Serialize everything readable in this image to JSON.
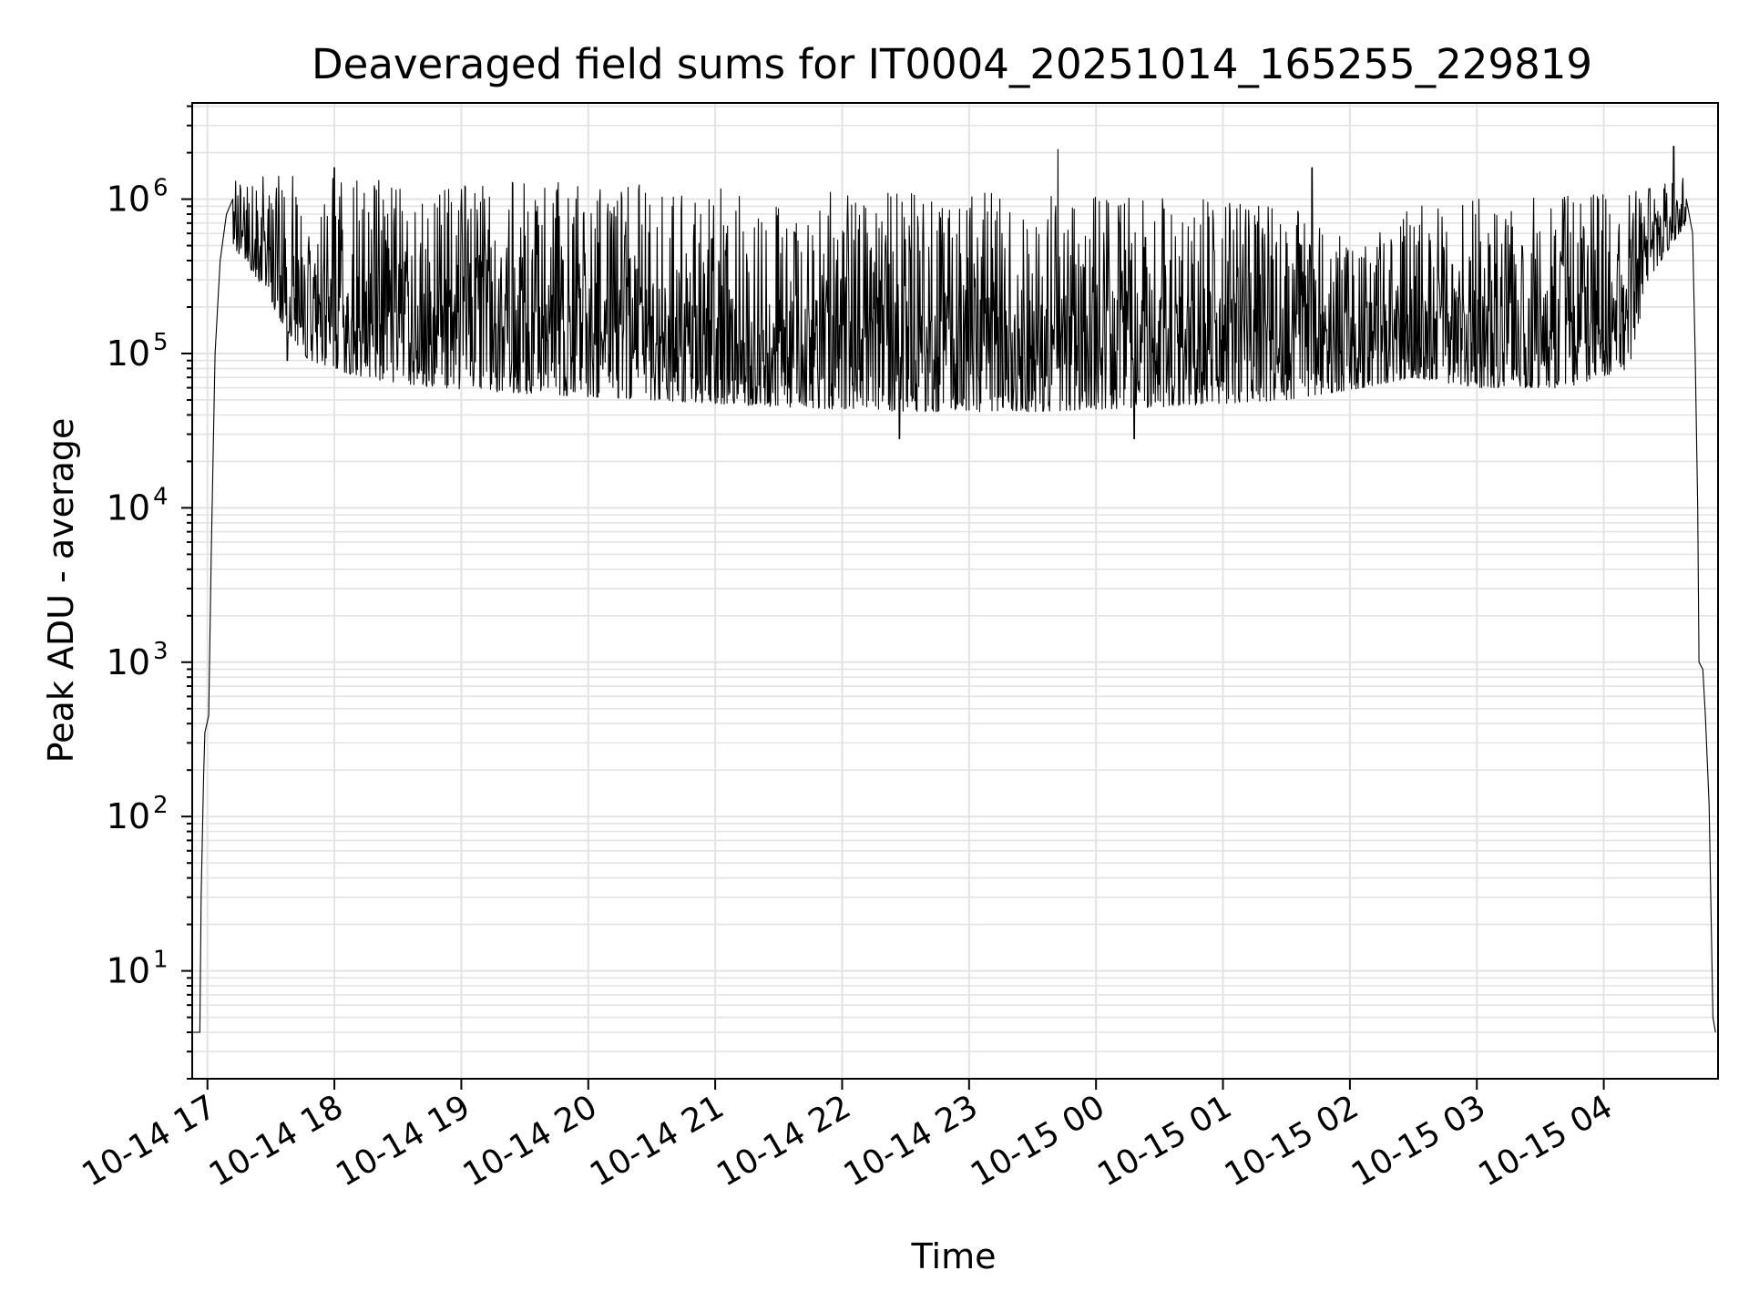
{
  "chart_data": {
    "type": "line",
    "title": "Deaveraged field sums for IT0004_20251014_165255_229819",
    "xlabel": "Time",
    "ylabel": "Peak ADU - average",
    "yscale": "log",
    "ylim": [
      2,
      4200000
    ],
    "xlim_hours": [
      16.88,
      28.9
    ],
    "grid": true,
    "line_color": "#000000",
    "grid_color": "#e3e3e3",
    "x_ticks": [
      {
        "label": "10-14 17",
        "hour": 17
      },
      {
        "label": "10-14 18",
        "hour": 18
      },
      {
        "label": "10-14 19",
        "hour": 19
      },
      {
        "label": "10-14 20",
        "hour": 20
      },
      {
        "label": "10-14 21",
        "hour": 21
      },
      {
        "label": "10-14 22",
        "hour": 22
      },
      {
        "label": "10-14 23",
        "hour": 23
      },
      {
        "label": "10-15 00",
        "hour": 24
      },
      {
        "label": "10-15 01",
        "hour": 25
      },
      {
        "label": "10-15 02",
        "hour": 26
      },
      {
        "label": "10-15 03",
        "hour": 27
      },
      {
        "label": "10-15 04",
        "hour": 28
      }
    ],
    "y_ticks": [
      {
        "base": "10",
        "exp": "1",
        "value": 10
      },
      {
        "base": "10",
        "exp": "2",
        "value": 100
      },
      {
        "base": "10",
        "exp": "3",
        "value": 1000
      },
      {
        "base": "10",
        "exp": "4",
        "value": 10000
      },
      {
        "base": "10",
        "exp": "5",
        "value": 100000
      },
      {
        "base": "10",
        "exp": "6",
        "value": 1000000
      }
    ],
    "series": [
      {
        "name": "deaveraged field sum",
        "ramp_up": [
          [
            16.88,
            4
          ],
          [
            16.94,
            4
          ],
          [
            16.95,
            30
          ],
          [
            16.97,
            180
          ],
          [
            16.98,
            350
          ],
          [
            17.01,
            450
          ],
          [
            17.03,
            5000
          ],
          [
            17.06,
            100000
          ],
          [
            17.1,
            400000
          ],
          [
            17.15,
            800000
          ],
          [
            17.2,
            1000000
          ]
        ],
        "ramp_down": [
          [
            28.65,
            1000000
          ],
          [
            28.7,
            600000
          ],
          [
            28.72,
            100000
          ],
          [
            28.74,
            10000
          ],
          [
            28.75,
            1000
          ],
          [
            28.78,
            900
          ],
          [
            28.8,
            450
          ],
          [
            28.83,
            120
          ],
          [
            28.86,
            5
          ],
          [
            28.88,
            4
          ]
        ],
        "envelope": [
          {
            "hour": 17.2,
            "low": 500000,
            "high": 1300000
          },
          {
            "hour": 17.4,
            "low": 300000,
            "high": 1400000
          },
          {
            "hour": 17.6,
            "low": 150000,
            "high": 1450000
          },
          {
            "hour": 17.8,
            "low": 90000,
            "high": 1400000
          },
          {
            "hour": 18.2,
            "low": 70000,
            "high": 1350000
          },
          {
            "hour": 18.8,
            "low": 60000,
            "high": 1300000
          },
          {
            "hour": 19.5,
            "low": 55000,
            "high": 1300000
          },
          {
            "hour": 20.5,
            "low": 50000,
            "high": 1250000
          },
          {
            "hour": 21.5,
            "low": 45000,
            "high": 1150000
          },
          {
            "hour": 22.5,
            "low": 42000,
            "high": 1100000
          },
          {
            "hour": 23.5,
            "low": 42000,
            "high": 1100000
          },
          {
            "hour": 24.5,
            "low": 45000,
            "high": 1050000
          },
          {
            "hour": 25.5,
            "low": 50000,
            "high": 1000000
          },
          {
            "hour": 26.1,
            "low": 60000,
            "high": 500000
          },
          {
            "hour": 26.5,
            "low": 70000,
            "high": 1000000
          },
          {
            "hour": 27.0,
            "low": 60000,
            "high": 1000000
          },
          {
            "hour": 27.7,
            "low": 60000,
            "high": 1050000
          },
          {
            "hour": 28.2,
            "low": 80000,
            "high": 1100000
          },
          {
            "hour": 28.35,
            "low": 300000,
            "high": 1200000
          },
          {
            "hour": 28.65,
            "low": 700000,
            "high": 1500000
          }
        ],
        "spikes": [
          {
            "hour": 17.2,
            "value": 1600000
          },
          {
            "hour": 18.0,
            "value": 1600000
          },
          {
            "hour": 23.7,
            "value": 2100000
          },
          {
            "hour": 24.3,
            "value": 1800000
          },
          {
            "hour": 25.7,
            "value": 1600000
          },
          {
            "hour": 28.55,
            "value": 2200000
          }
        ],
        "dips": [
          {
            "hour": 22.45,
            "value": 28000
          },
          {
            "hour": 24.3,
            "value": 28000
          },
          {
            "hour": 17.63,
            "value": 90000
          }
        ]
      }
    ]
  }
}
